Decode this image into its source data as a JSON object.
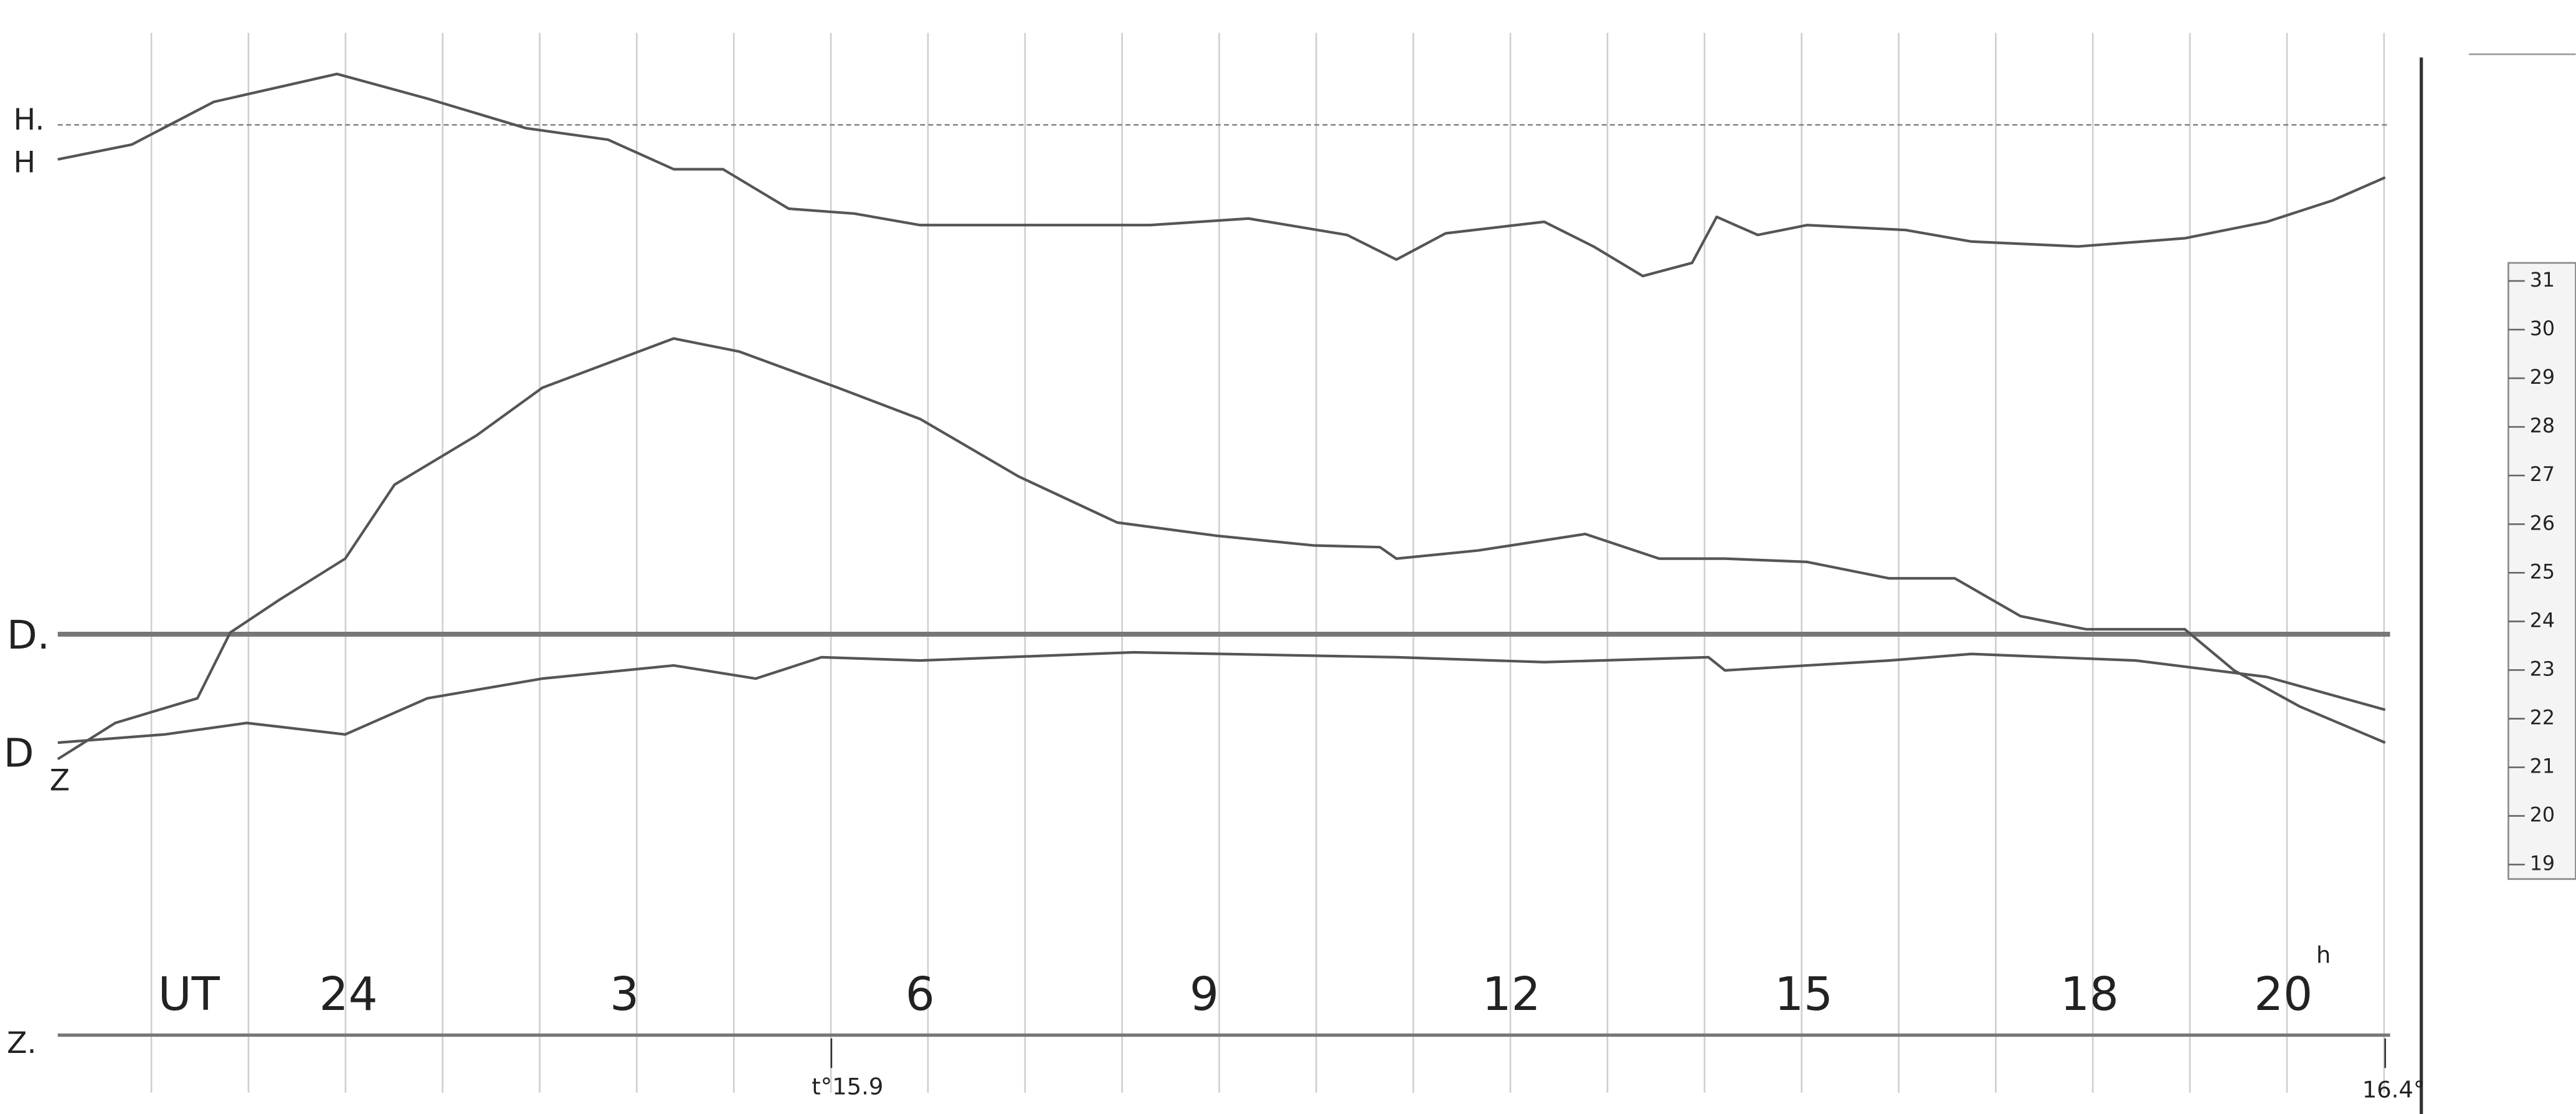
{
  "trace_labels": {
    "h_base": "H.",
    "h": "H",
    "d_base": "D.",
    "d": "D",
    "z": "Z",
    "z_base": "Z."
  },
  "time_axis": {
    "label": "UT",
    "hours": [
      "24",
      "3",
      "6",
      "9",
      "12",
      "15",
      "18",
      "20"
    ],
    "unit": "h"
  },
  "markers": {
    "start": "t°15.9",
    "end": "16.4°"
  },
  "scale": [
    "31",
    "30",
    "29",
    "28",
    "27",
    "26",
    "25",
    "24",
    "23",
    "22",
    "21",
    "20",
    "19"
  ]
}
